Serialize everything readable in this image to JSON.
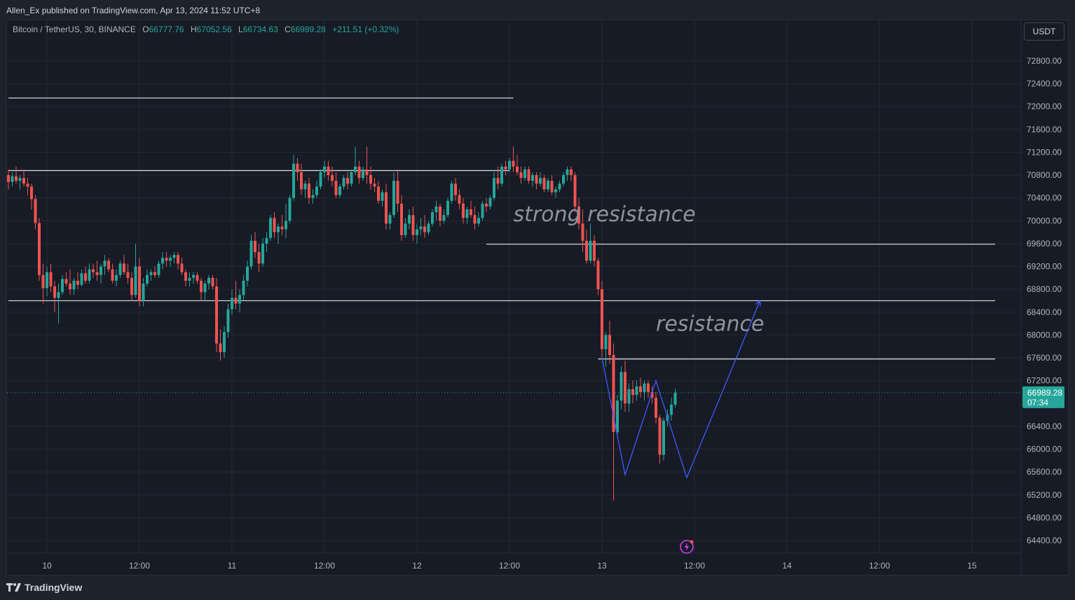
{
  "header": {
    "published": "Allen_Ex published on TradingView.com, Apr 13, 2024 11:52 UTC+8"
  },
  "legend": {
    "symbol": "Bitcoin / TetherUS, 30, BINANCE",
    "o_label": "O",
    "o_value": "66777.76",
    "h_label": "H",
    "h_value": "67052.56",
    "l_label": "L",
    "l_value": "66734.63",
    "c_label": "C",
    "c_value": "66989.28",
    "change": "+211.51 (+0.32%)"
  },
  "currency_button": "USDT",
  "footer": {
    "logo": "TradingView",
    "logo_icon": "tradingview-logo-icon"
  },
  "colors": {
    "up": "#26a69a",
    "down": "#ef5350",
    "background": "#171b26",
    "grid": "#242833",
    "pattern": "#3d5afe",
    "level": "#d1d4dc"
  },
  "icons": {
    "event": "lightning-event-icon"
  },
  "chart_data": {
    "type": "candlestick",
    "symbol": "BTCUSDT",
    "interval": "30",
    "y_ticks": [
      72800,
      72400,
      72000,
      71600,
      71200,
      70800,
      70400,
      70000,
      69600,
      69200,
      68800,
      68400,
      68000,
      67600,
      67200,
      66400,
      66000,
      65600,
      65200,
      64800,
      64400
    ],
    "y_tick_labels": [
      "72800.00",
      "72400.00",
      "72000.00",
      "71600.00",
      "71200.00",
      "70800.00",
      "70400.00",
      "70000.00",
      "69600.00",
      "69200.00",
      "68800.00",
      "68400.00",
      "68000.00",
      "67600.00",
      "67200.00",
      "66400.00",
      "66000.00",
      "65600.00",
      "65200.00",
      "64800.00",
      "64400.00"
    ],
    "x_ticks": [
      "10",
      "12:00",
      "11",
      "12:00",
      "12",
      "12:00",
      "13",
      "12:00",
      "14",
      "12:00",
      "15"
    ],
    "x_tick_times": [
      "2024-04-10 00:00",
      "2024-04-10 12:00",
      "2024-04-11 00:00",
      "2024-04-11 12:00",
      "2024-04-12 00:00",
      "2024-04-12 12:00",
      "2024-04-13 00:00",
      "2024-04-13 12:00",
      "2024-04-14 00:00",
      "2024-04-14 12:00",
      "2024-04-15 00:00"
    ],
    "last_price": 66989.28,
    "last_price_label": "66989.28",
    "countdown": "07:34",
    "horizontal_levels": [
      {
        "price": 72150,
        "from": "2024-04-09 19:00",
        "to": "2024-04-12 12:30"
      },
      {
        "price": 70880,
        "from": "2024-04-09 19:00",
        "to": "2024-04-12 12:00"
      },
      {
        "price": 68600,
        "from": "2024-04-09 19:00",
        "to": "2024-04-15 03:00"
      },
      {
        "price": 69590,
        "from": "2024-04-12 09:00",
        "to": "2024-04-15 03:00"
      },
      {
        "price": 67580,
        "from": "2024-04-12 23:30",
        "to": "2024-04-15 03:00"
      }
    ],
    "annotations": [
      {
        "text": "strong resistance",
        "price": 69990,
        "time": "2024-04-12 12:30"
      },
      {
        "text": "resistance",
        "price": 68070,
        "time": "2024-04-13 07:00"
      }
    ],
    "projection_path": [
      {
        "time": "2024-04-13 00:00",
        "price": 67600
      },
      {
        "time": "2024-04-13 03:00",
        "price": 65550
      },
      {
        "time": "2024-04-13 07:00",
        "price": 67200
      },
      {
        "time": "2024-04-13 11:00",
        "price": 65500
      },
      {
        "time": "2024-04-13 20:30",
        "price": 68600
      }
    ],
    "candles": [
      [
        70800,
        70900,
        70550,
        70680
      ],
      [
        70680,
        70850,
        70600,
        70780
      ],
      [
        70780,
        70950,
        70650,
        70700
      ],
      [
        70700,
        70800,
        70550,
        70750
      ],
      [
        70750,
        70900,
        70600,
        70650
      ],
      [
        70650,
        70750,
        70450,
        70600
      ],
      [
        70600,
        70650,
        70200,
        70380
      ],
      [
        70380,
        70450,
        69850,
        69960
      ],
      [
        69960,
        70050,
        68950,
        69050
      ],
      [
        69050,
        69250,
        68550,
        68820
      ],
      [
        68820,
        69200,
        68680,
        69100
      ],
      [
        69100,
        69250,
        68750,
        68850
      ],
      [
        68850,
        68950,
        68400,
        68650
      ],
      [
        68650,
        68900,
        68200,
        68750
      ],
      [
        68750,
        69050,
        68700,
        68980
      ],
      [
        68980,
        69100,
        68850,
        68900
      ],
      [
        68900,
        69150,
        68700,
        68800
      ],
      [
        68800,
        69000,
        68700,
        68950
      ],
      [
        68950,
        69100,
        68800,
        68880
      ],
      [
        68880,
        69150,
        68850,
        69080
      ],
      [
        69080,
        69200,
        68900,
        68950
      ],
      [
        68950,
        69250,
        68900,
        69150
      ],
      [
        69150,
        69250,
        69000,
        69100
      ],
      [
        69100,
        69300,
        68950,
        69050
      ],
      [
        69050,
        69250,
        68900,
        69200
      ],
      [
        69200,
        69400,
        69050,
        69300
      ],
      [
        69300,
        69350,
        69100,
        69150
      ],
      [
        69150,
        69250,
        68900,
        68950
      ],
      [
        68950,
        69150,
        68850,
        69050
      ],
      [
        69050,
        69300,
        69000,
        69250
      ],
      [
        69250,
        69400,
        69050,
        69100
      ],
      [
        69100,
        69250,
        68900,
        69000
      ],
      [
        69000,
        69100,
        68600,
        68700
      ],
      [
        68700,
        69600,
        68650,
        69200
      ],
      [
        69200,
        69350,
        68500,
        68600
      ],
      [
        68600,
        69000,
        68500,
        68900
      ],
      [
        68900,
        69150,
        68850,
        69050
      ],
      [
        69050,
        69150,
        68950,
        69100
      ],
      [
        69100,
        69200,
        69000,
        69050
      ],
      [
        69050,
        69300,
        69000,
        69250
      ],
      [
        69250,
        69450,
        69150,
        69350
      ],
      [
        69350,
        69450,
        69200,
        69300
      ],
      [
        69300,
        69400,
        69200,
        69350
      ],
      [
        69350,
        69450,
        69250,
        69400
      ],
      [
        69400,
        69450,
        69150,
        69250
      ],
      [
        69250,
        69350,
        69050,
        69100
      ],
      [
        69100,
        69150,
        68850,
        68950
      ],
      [
        68950,
        69100,
        68850,
        69000
      ],
      [
        69000,
        69100,
        68900,
        69050
      ],
      [
        69050,
        69100,
        68900,
        68950
      ],
      [
        68950,
        69000,
        68600,
        68750
      ],
      [
        68750,
        68950,
        68600,
        68900
      ],
      [
        68900,
        69050,
        68800,
        69000
      ],
      [
        69000,
        69050,
        68800,
        68850
      ],
      [
        68850,
        69000,
        67700,
        67850
      ],
      [
        67850,
        68100,
        67550,
        67700
      ],
      [
        67700,
        68150,
        67600,
        68050
      ],
      [
        68050,
        68550,
        67950,
        68450
      ],
      [
        68450,
        68800,
        68350,
        68650
      ],
      [
        68650,
        68950,
        68450,
        68550
      ],
      [
        68550,
        68800,
        68400,
        68700
      ],
      [
        68700,
        69050,
        68600,
        68950
      ],
      [
        68950,
        69300,
        68850,
        69200
      ],
      [
        69200,
        69750,
        69150,
        69650
      ],
      [
        69650,
        69800,
        69350,
        69450
      ],
      [
        69450,
        69600,
        69100,
        69250
      ],
      [
        69250,
        69700,
        69200,
        69600
      ],
      [
        69600,
        69800,
        69450,
        69700
      ],
      [
        69700,
        70100,
        69650,
        70050
      ],
      [
        70050,
        70150,
        69700,
        69800
      ],
      [
        69800,
        69950,
        69600,
        69900
      ],
      [
        69900,
        70100,
        69750,
        69850
      ],
      [
        69850,
        70300,
        69700,
        70000
      ],
      [
        70000,
        70450,
        69950,
        70400
      ],
      [
        70400,
        71150,
        70350,
        71000
      ],
      [
        71000,
        71100,
        70700,
        70850
      ],
      [
        70850,
        71000,
        70450,
        70550
      ],
      [
        70550,
        70700,
        70400,
        70650
      ],
      [
        70650,
        70750,
        70300,
        70400
      ],
      [
        70400,
        70550,
        70300,
        70450
      ],
      [
        70450,
        70700,
        70400,
        70600
      ],
      [
        70600,
        70900,
        70550,
        70850
      ],
      [
        70850,
        71050,
        70750,
        70950
      ],
      [
        70950,
        71050,
        70700,
        70800
      ],
      [
        70800,
        70950,
        70600,
        70700
      ],
      [
        70700,
        70850,
        70400,
        70450
      ],
      [
        70450,
        70650,
        70400,
        70600
      ],
      [
        70600,
        70800,
        70550,
        70750
      ],
      [
        70750,
        70850,
        70550,
        70650
      ],
      [
        70650,
        70900,
        70600,
        70850
      ],
      [
        70850,
        71300,
        70800,
        70950
      ],
      [
        70950,
        71050,
        70650,
        70750
      ],
      [
        70750,
        70950,
        70700,
        70900
      ],
      [
        70900,
        71300,
        70650,
        70800
      ],
      [
        70800,
        70950,
        70550,
        70650
      ],
      [
        70650,
        70750,
        70500,
        70600
      ],
      [
        70600,
        70700,
        70300,
        70350
      ],
      [
        70350,
        70550,
        70250,
        70500
      ],
      [
        70500,
        70650,
        69850,
        69950
      ],
      [
        69950,
        70150,
        69850,
        70100
      ],
      [
        70100,
        70850,
        70050,
        70700
      ],
      [
        70700,
        70900,
        70150,
        70300
      ],
      [
        70300,
        70450,
        69650,
        69750
      ],
      [
        69750,
        70050,
        69700,
        69950
      ],
      [
        69950,
        70200,
        69850,
        70100
      ],
      [
        70100,
        70250,
        69650,
        69750
      ],
      [
        69750,
        69950,
        69600,
        69850
      ],
      [
        69850,
        70050,
        69750,
        69900
      ],
      [
        69900,
        70100,
        69700,
        69800
      ],
      [
        69800,
        70000,
        69750,
        69950
      ],
      [
        69950,
        70200,
        69900,
        70150
      ],
      [
        70150,
        70350,
        70000,
        70250
      ],
      [
        70250,
        70300,
        69900,
        70000
      ],
      [
        70000,
        70200,
        69950,
        70100
      ],
      [
        70100,
        70400,
        70050,
        70350
      ],
      [
        70350,
        70700,
        70300,
        70650
      ],
      [
        70650,
        70750,
        70350,
        70450
      ],
      [
        70450,
        70550,
        70200,
        70300
      ],
      [
        70300,
        70400,
        69950,
        70050
      ],
      [
        70050,
        70250,
        69950,
        70200
      ],
      [
        70200,
        70350,
        70050,
        70100
      ],
      [
        70100,
        70250,
        69850,
        69950
      ],
      [
        69950,
        70150,
        69900,
        70050
      ],
      [
        70050,
        70350,
        70000,
        70300
      ],
      [
        70300,
        70400,
        70150,
        70250
      ],
      [
        70250,
        70450,
        70200,
        70400
      ],
      [
        70400,
        70850,
        70350,
        70750
      ],
      [
        70750,
        70950,
        70550,
        70650
      ],
      [
        70650,
        71000,
        70600,
        70950
      ],
      [
        70950,
        71050,
        70800,
        70900
      ],
      [
        70900,
        71100,
        70850,
        71050
      ],
      [
        71050,
        71300,
        70850,
        70950
      ],
      [
        70950,
        71150,
        70800,
        70850
      ],
      [
        70850,
        70950,
        70650,
        70750
      ],
      [
        70750,
        70950,
        70700,
        70900
      ],
      [
        70900,
        70950,
        70650,
        70700
      ],
      [
        70700,
        70850,
        70600,
        70800
      ],
      [
        70800,
        70850,
        70550,
        70650
      ],
      [
        70650,
        70850,
        70600,
        70750
      ],
      [
        70750,
        70800,
        70500,
        70550
      ],
      [
        70550,
        70750,
        70500,
        70700
      ],
      [
        70700,
        70800,
        70450,
        70500
      ],
      [
        70500,
        70600,
        70400,
        70550
      ],
      [
        70550,
        70700,
        70500,
        70650
      ],
      [
        70650,
        70850,
        70600,
        70800
      ],
      [
        70800,
        70950,
        70700,
        70900
      ],
      [
        70900,
        70950,
        70700,
        70800
      ],
      [
        70800,
        70850,
        70150,
        70250
      ],
      [
        70250,
        70400,
        69850,
        69950
      ],
      [
        69950,
        70200,
        69450,
        69650
      ],
      [
        69650,
        69850,
        69250,
        69300
      ],
      [
        69300,
        69950,
        69250,
        69650
      ],
      [
        69650,
        69750,
        69200,
        69300
      ],
      [
        69300,
        69350,
        68700,
        68800
      ],
      [
        68800,
        68950,
        67600,
        67750
      ],
      [
        67750,
        68050,
        67450,
        68000
      ],
      [
        68000,
        68250,
        67500,
        67650
      ],
      [
        67650,
        67850,
        65100,
        66300
      ],
      [
        66300,
        66950,
        66200,
        66850
      ],
      [
        66850,
        67450,
        66700,
        67350
      ],
      [
        67350,
        67550,
        66650,
        66800
      ],
      [
        66800,
        67150,
        66650,
        67050
      ],
      [
        67050,
        67200,
        66800,
        66950
      ],
      [
        66950,
        67200,
        66850,
        67100
      ],
      [
        67100,
        67250,
        66900,
        67000
      ],
      [
        67000,
        67200,
        66850,
        67150
      ],
      [
        67150,
        67200,
        66900,
        67000
      ],
      [
        67000,
        67100,
        66800,
        66900
      ],
      [
        66900,
        67000,
        66450,
        66550
      ],
      [
        66550,
        66600,
        65750,
        65900
      ],
      [
        65900,
        66550,
        65800,
        66500
      ],
      [
        66500,
        66700,
        66400,
        66600
      ],
      [
        66600,
        66900,
        66500,
        66780
      ],
      [
        66780,
        67060,
        66730,
        66990
      ]
    ],
    "candle_times": {
      "first": "2024-04-09 19:00",
      "interval_minutes": 30
    }
  }
}
